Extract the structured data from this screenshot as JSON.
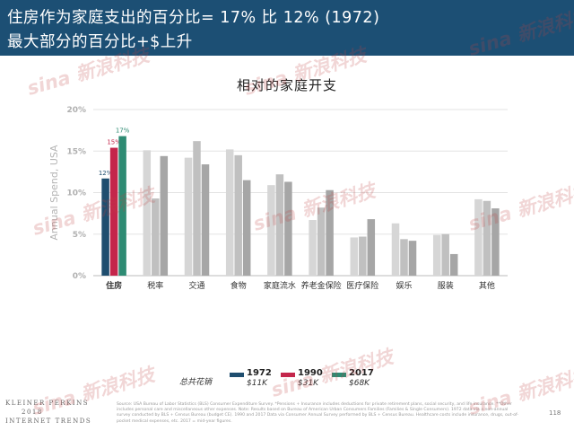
{
  "header": {
    "title_line1": "住房作为家庭支出的百分比= 17% 比 12% (1972)",
    "title_line2": "最大部分的百分比+$上升"
  },
  "chart_data": {
    "type": "bar",
    "title": "相对的家庭开支",
    "ylabel": "Annual Spend, USA",
    "ylim": [
      0,
      20
    ],
    "yticks": [
      "0%",
      "5%",
      "10%",
      "15%",
      "20%"
    ],
    "categories": [
      "住房",
      "税率",
      "交通",
      "食物",
      "家庭流水",
      "养老金保险",
      "医疗保险",
      "娱乐",
      "服装",
      "其他"
    ],
    "series": [
      {
        "name": "1972",
        "values": [
          11.7,
          15.1,
          14.2,
          15.2,
          10.9,
          6.7,
          4.6,
          6.3,
          4.9,
          9.2
        ],
        "data_labels": [
          "12%"
        ]
      },
      {
        "name": "1990",
        "values": [
          15.4,
          9.3,
          16.2,
          14.5,
          12.2,
          8.2,
          4.7,
          4.4,
          5.0,
          9.0
        ],
        "data_labels": [
          "15%"
        ]
      },
      {
        "name": "2017",
        "values": [
          16.8,
          14.4,
          13.4,
          11.5,
          11.3,
          10.3,
          6.8,
          4.2,
          2.6,
          8.1
        ],
        "data_labels": [
          "17%"
        ]
      }
    ],
    "grid": true,
    "legend_title": "总共花销",
    "legend": [
      {
        "year": "1972",
        "amount": "$11K"
      },
      {
        "year": "1990",
        "amount": "$31K"
      },
      {
        "year": "2017",
        "amount": "$68K"
      }
    ],
    "legend_position": "bottom"
  },
  "colors": {
    "header_bg": "#1c4f74",
    "series_1972": "#1f4e6f",
    "series_1990": "#c4264b",
    "series_2017": "#2e8b73",
    "other_1972": "#d6d6d6",
    "other_1990": "#c0c0c0",
    "other_2017": "#a6a6a6"
  },
  "footer": {
    "logo_line1": "KLEINER PERKINS",
    "logo_line2": "2018",
    "logo_line3": "INTERNET TRENDS",
    "source": "Source: USA Bureau of Labor Statistics (BLS) Consumer Expenditure Survey. *Pensions + Insurance includes deductions for private retirement plans, social security, and life insurance. **Other includes personal care and miscellaneous other expenses. Note: Results based on Bureau of American Urban Consumers Families (Families & Single Consumers). 1972 data via a non-annual survey conducted by BLS + Census Bureau (budget CE). 1990 and 2017 Data via Consumer Annual Survey performed by BLS + Census Bureau. Healthcare costs include insurance, drugs, out-of-pocket medical expenses, etc. 2017 = mid-year figures.",
    "page_number": "118"
  },
  "watermark": {
    "brand": "sina",
    "text": "新浪科技"
  }
}
